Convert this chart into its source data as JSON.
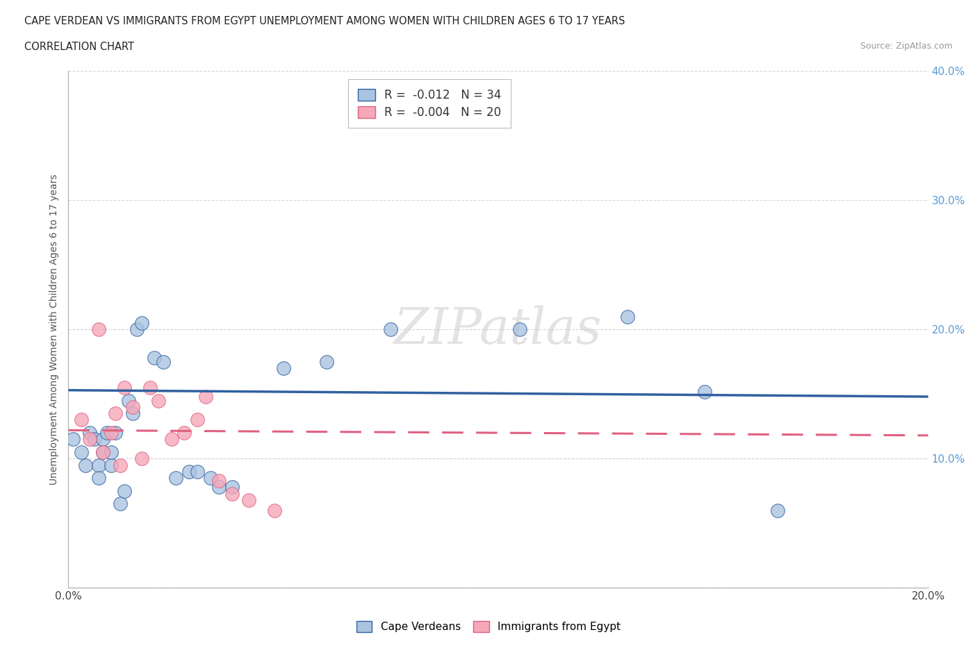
{
  "title_line1": "CAPE VERDEAN VS IMMIGRANTS FROM EGYPT UNEMPLOYMENT AMONG WOMEN WITH CHILDREN AGES 6 TO 17 YEARS",
  "title_line2": "CORRELATION CHART",
  "source": "Source: ZipAtlas.com",
  "xlim": [
    0,
    0.2
  ],
  "ylim": [
    0,
    0.4
  ],
  "legend_entry1": "R =  -0.012   N = 34",
  "legend_entry2": "R =  -0.004   N = 20",
  "legend_label1": "Cape Verdeans",
  "legend_label2": "Immigrants from Egypt",
  "blue_color": "#aac4e0",
  "pink_color": "#f5a8b8",
  "blue_line_color": "#3060a0",
  "pink_line_color": "#e06080",
  "cape_verdean_x": [
    0.001,
    0.003,
    0.004,
    0.005,
    0.006,
    0.007,
    0.007,
    0.008,
    0.008,
    0.009,
    0.01,
    0.01,
    0.011,
    0.012,
    0.013,
    0.014,
    0.015,
    0.016,
    0.017,
    0.02,
    0.022,
    0.025,
    0.028,
    0.03,
    0.033,
    0.035,
    0.038,
    0.05,
    0.06,
    0.075,
    0.105,
    0.13,
    0.148,
    0.165
  ],
  "cape_verdean_y": [
    0.115,
    0.105,
    0.095,
    0.12,
    0.115,
    0.095,
    0.085,
    0.105,
    0.115,
    0.12,
    0.095,
    0.105,
    0.12,
    0.065,
    0.075,
    0.145,
    0.135,
    0.2,
    0.205,
    0.178,
    0.175,
    0.085,
    0.09,
    0.09,
    0.085,
    0.078,
    0.078,
    0.17,
    0.175,
    0.2,
    0.2,
    0.21,
    0.152,
    0.06
  ],
  "egypt_x": [
    0.003,
    0.005,
    0.007,
    0.008,
    0.01,
    0.011,
    0.012,
    0.013,
    0.015,
    0.017,
    0.019,
    0.021,
    0.024,
    0.027,
    0.03,
    0.032,
    0.035,
    0.038,
    0.042,
    0.048
  ],
  "egypt_y": [
    0.13,
    0.115,
    0.2,
    0.105,
    0.12,
    0.135,
    0.095,
    0.155,
    0.14,
    0.1,
    0.155,
    0.145,
    0.115,
    0.12,
    0.13,
    0.148,
    0.083,
    0.073,
    0.068,
    0.06
  ],
  "blue_trend_y_at_x0": 0.153,
  "blue_trend_y_at_x1": 0.148,
  "pink_trend_y_at_x0": 0.122,
  "pink_trend_y_at_x1": 0.118,
  "ytick_vals": [
    0.0,
    0.1,
    0.2,
    0.3,
    0.4
  ],
  "ytick_labels_right": [
    "",
    "10.0%",
    "20.0%",
    "30.0%",
    "40.0%"
  ],
  "xtick_vals": [
    0.0,
    0.05,
    0.1,
    0.15,
    0.2
  ],
  "xtick_labels": [
    "0.0%",
    "",
    "",
    "",
    "20.0%"
  ],
  "watermark": "ZIPatlas",
  "tick_color": "#5b9bd5",
  "grid_color": "#d0d0d0"
}
